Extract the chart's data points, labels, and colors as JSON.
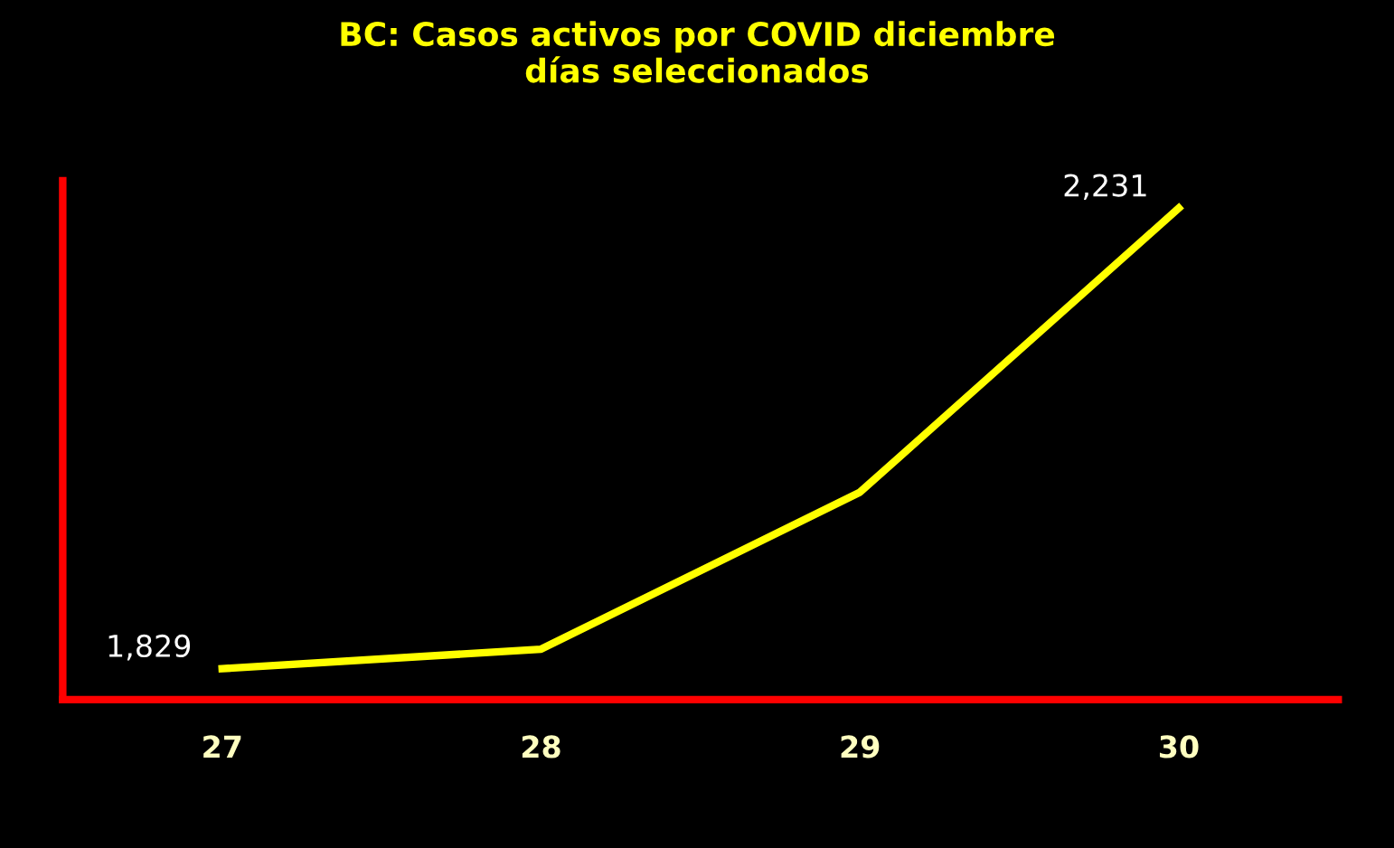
{
  "chart_data": {
    "type": "line",
    "title": "BC: Casos activos por COVID diciembre\ndías seleccionados",
    "categories": [
      "27",
      "28",
      "29",
      "30"
    ],
    "series": [
      {
        "color": "#ffff00",
        "values": [
          1829,
          1846,
          1983,
          2231
        ],
        "value_labels": [
          "1,829",
          null,
          null,
          "2,231"
        ]
      }
    ],
    "ylim": [
      1802,
      2255
    ],
    "tick_labels": "x",
    "grid": false,
    "legend": false,
    "marker": "none",
    "line_style": "solid"
  }
}
